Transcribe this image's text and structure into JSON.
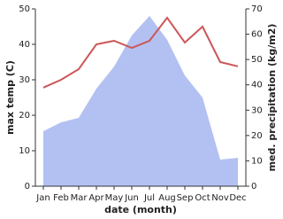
{
  "chart_data": {
    "type": "line",
    "categories": [
      "Jan",
      "Feb",
      "Mar",
      "Apr",
      "May",
      "Jun",
      "Jul",
      "Aug",
      "Sep",
      "Oct",
      "Nov",
      "Dec"
    ],
    "x_label": "date (month)",
    "y_label": "max temp (C)",
    "y2_label": "med. precipitation (kg/m2)",
    "ylim": [
      0,
      50
    ],
    "yticks": [
      0,
      10,
      20,
      30,
      40,
      50
    ],
    "y2lim": [
      0,
      70
    ],
    "y2ticks": [
      0,
      10,
      20,
      30,
      40,
      50,
      60,
      70
    ],
    "series": [
      {
        "name": "med. precipitation",
        "type": "area",
        "axis": "y2",
        "color": "#b3c1f2",
        "values": [
          21.7,
          25.2,
          27,
          38.5,
          47.2,
          59.5,
          67.2,
          57.8,
          43.7,
          35,
          10.5,
          11.2
        ]
      },
      {
        "name": "max temp",
        "type": "line",
        "color": "#cd5658",
        "values": [
          27.8,
          30,
          33,
          40,
          41,
          39,
          41,
          47.5,
          40.5,
          45,
          35,
          33.8
        ]
      }
    ]
  }
}
